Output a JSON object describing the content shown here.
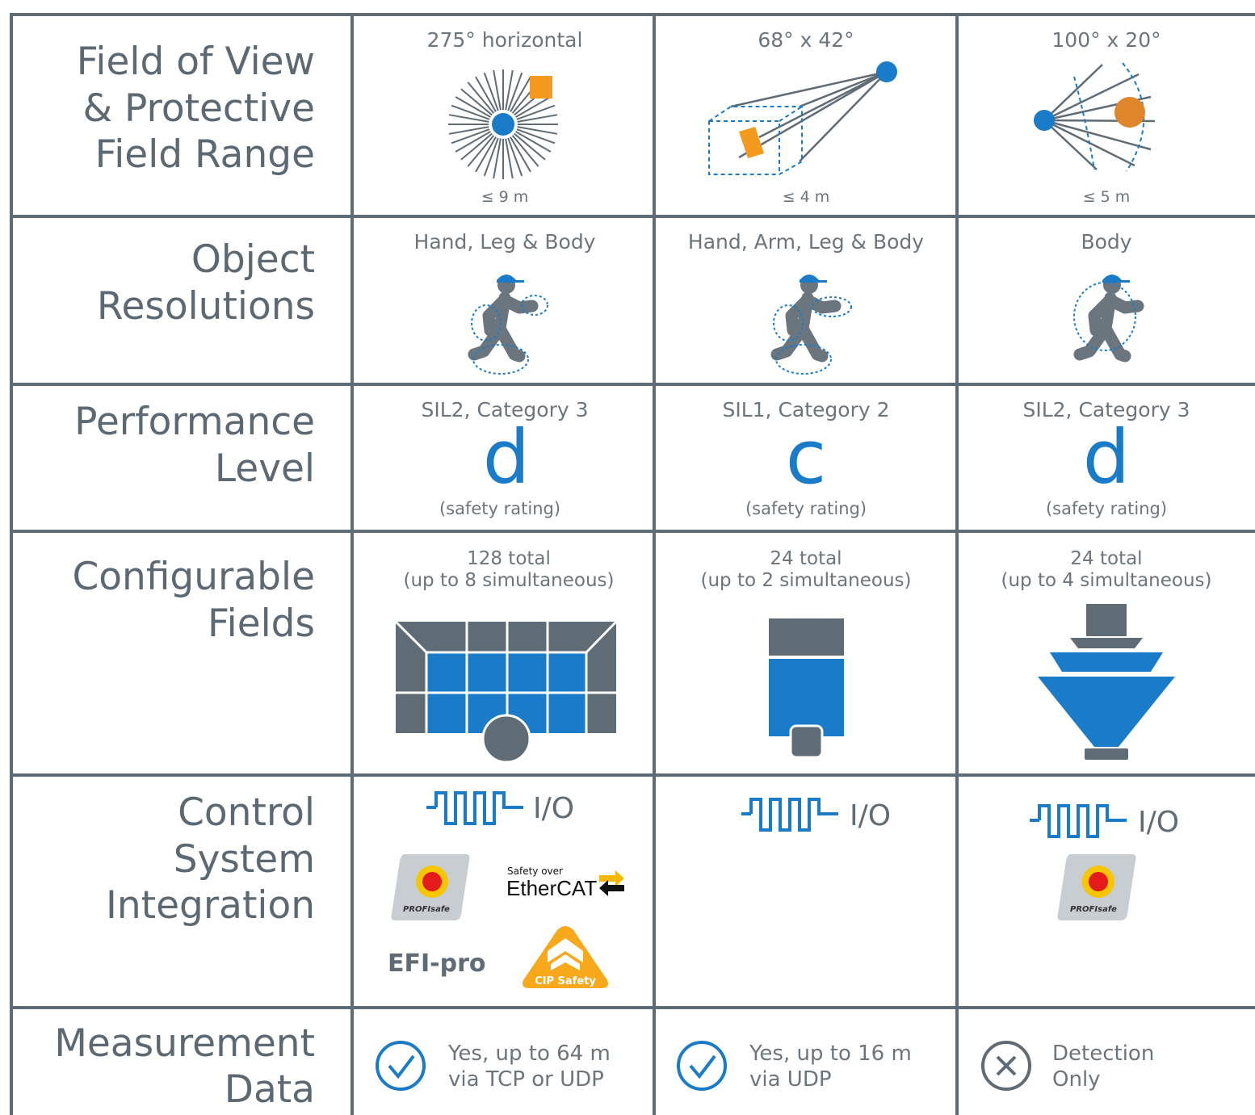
{
  "rows": [
    {
      "label": [
        "Field of View",
        "& Protective",
        "Field Range"
      ],
      "cells": [
        {
          "title": "275° horizontal",
          "note": "≤ 9 m"
        },
        {
          "title": "68° x 42°",
          "note": "≤ 4 m"
        },
        {
          "title": "100° x 20°",
          "note": "≤ 5 m"
        }
      ]
    },
    {
      "label": [
        "Object",
        "Resolutions"
      ],
      "cells": [
        {
          "title": "Hand, Leg & Body"
        },
        {
          "title": "Hand, Arm, Leg & Body"
        },
        {
          "title": "Body"
        }
      ]
    },
    {
      "label": [
        "Performance",
        "Level"
      ],
      "cells": [
        {
          "title": "SIL2, Category 3",
          "level": "d",
          "note": "(safety rating)"
        },
        {
          "title": "SIL1, Category 2",
          "level": "c",
          "note": "(safety rating)"
        },
        {
          "title": "SIL2, Category 3",
          "level": "d",
          "note": "(safety rating)"
        }
      ]
    },
    {
      "label": [
        "Configurable",
        "Fields"
      ],
      "cells": [
        {
          "total": "128 total",
          "simultaneous": "(up to 8 simultaneous)"
        },
        {
          "total": "24 total",
          "simultaneous": "(up to 2 simultaneous)"
        },
        {
          "total": "24 total",
          "simultaneous": "(up to 4 simultaneous)"
        }
      ]
    },
    {
      "label": [
        "Control",
        "System",
        "Integration"
      ],
      "cells": [
        {
          "io": "I/O",
          "profisafe": "PROFIsafe",
          "ethercat_top": "Safety over",
          "ethercat": "EtherCAT",
          "efi": "EFI-pro",
          "cip": "CIP Safety"
        },
        {
          "io": "I/O"
        },
        {
          "io": "I/O",
          "profisafe": "PROFIsafe"
        }
      ]
    },
    {
      "label": [
        "Measurement",
        "Data"
      ],
      "cells": [
        {
          "lines": [
            "Yes, up to 64 m",
            "via TCP or UDP"
          ]
        },
        {
          "lines": [
            "Yes, up to 16 m",
            "via UDP"
          ]
        },
        {
          "lines": [
            "Detection",
            "Only"
          ]
        }
      ]
    }
  ]
}
